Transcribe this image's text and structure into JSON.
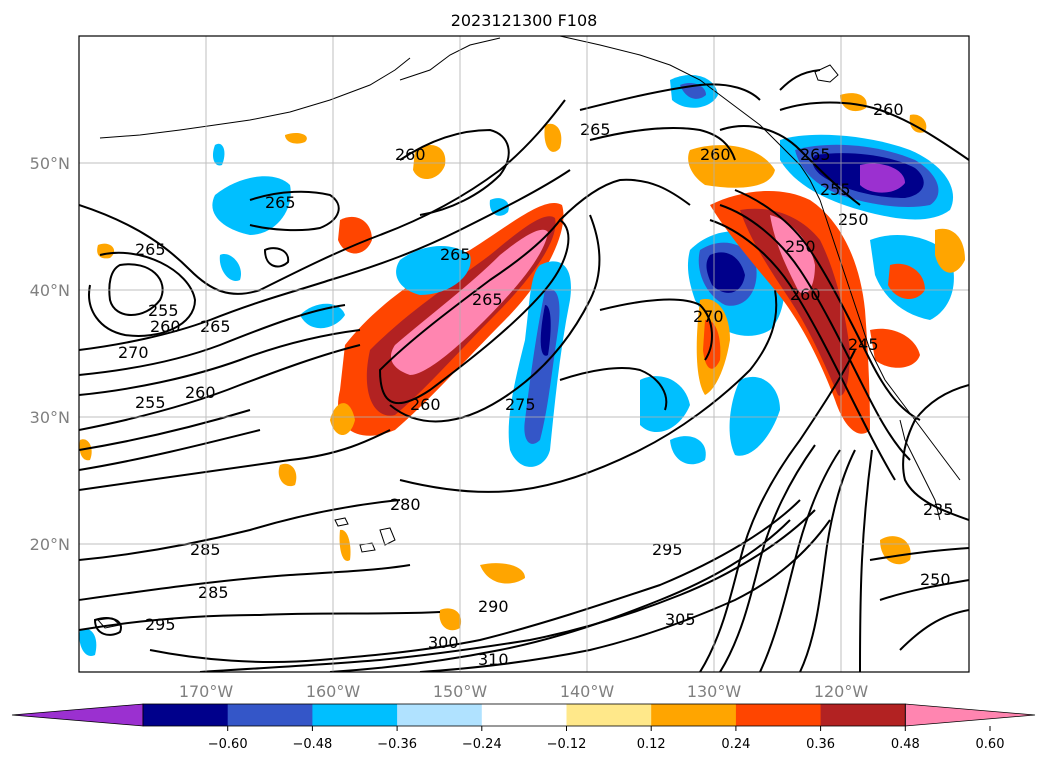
{
  "map": {
    "title": "2023121300 F108",
    "lat_labels": [
      "50°N",
      "40°N",
      "30°N",
      "20°N"
    ],
    "lon_labels": [
      "170°W",
      "160°W",
      "150°W",
      "140°W",
      "130°W",
      "120°W"
    ],
    "contour_labels": [
      "265",
      "260",
      "265",
      "265",
      "255",
      "260",
      "265",
      "270",
      "255",
      "260",
      "260",
      "265",
      "265",
      "260",
      "275",
      "270",
      "280",
      "285",
      "285",
      "295",
      "290",
      "300",
      "310",
      "295",
      "305",
      "250",
      "260",
      "245",
      "235",
      "250",
      "265",
      "255",
      "250",
      "260"
    ],
    "grid": true
  },
  "colorbar": {
    "ticks": [
      "−0.60",
      "−0.48",
      "−0.36",
      "−0.24",
      "−0.12",
      "0.12",
      "0.24",
      "0.36",
      "0.48",
      "0.60"
    ],
    "colors": [
      "#9b30d0",
      "#00008b",
      "#3456c8",
      "#00bfff",
      "#b0e2ff",
      "#ffffff",
      "#ffe88a",
      "#ffa500",
      "#ff4500",
      "#b22222",
      "#ff85b0"
    ]
  }
}
